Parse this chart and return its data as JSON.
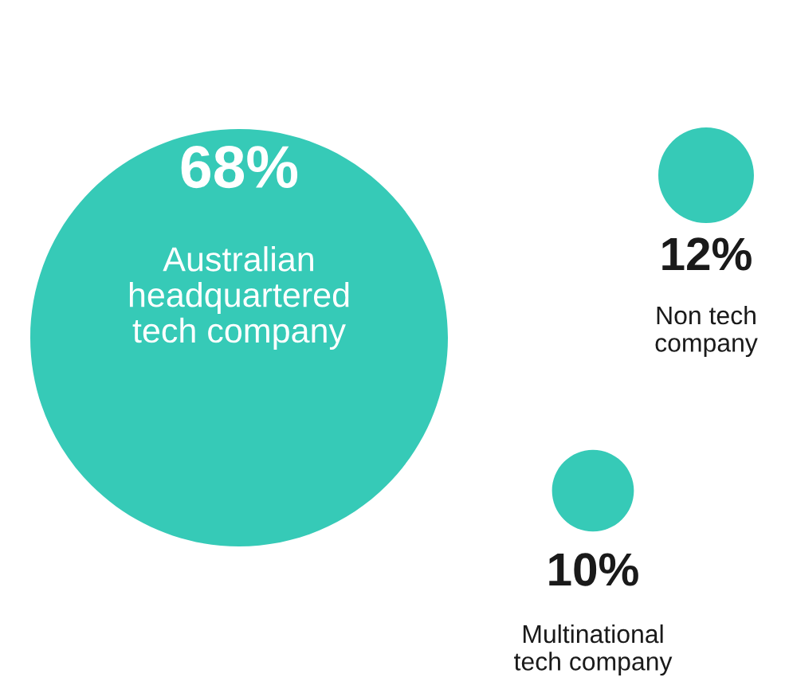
{
  "chart_data": {
    "type": "other",
    "categories": [
      "Australian\nheadquartered\ntech company",
      "Non tech\ncompany",
      "Multinational\ntech company"
    ],
    "values": [
      68,
      12,
      10
    ],
    "value_labels": [
      "68%",
      "12%",
      "10%"
    ],
    "colors": [
      "#36cab7",
      "#36cab7",
      "#36cab7"
    ]
  }
}
